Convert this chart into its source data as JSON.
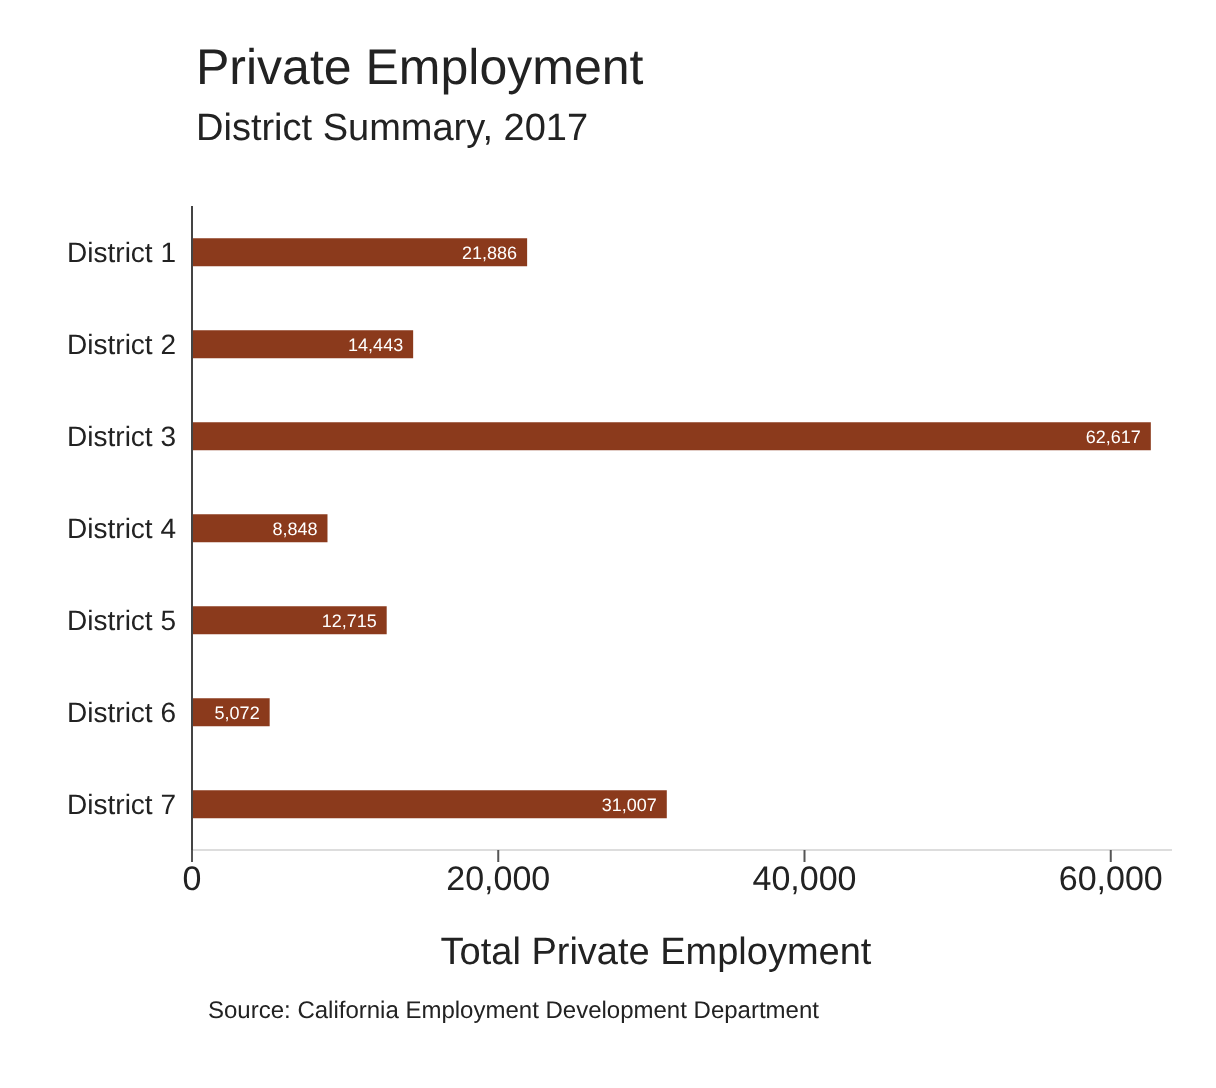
{
  "chart_data": {
    "type": "bar",
    "orientation": "horizontal",
    "title": "Private Employment",
    "subtitle": "District Summary, 2017",
    "xlabel": "Total Private Employment",
    "categories": [
      "District 1",
      "District 2",
      "District 3",
      "District 4",
      "District 5",
      "District 6",
      "District 7"
    ],
    "values": [
      21886,
      14443,
      62617,
      8848,
      12715,
      5072,
      31007
    ],
    "value_labels": [
      "21,886",
      "14,443",
      "62,617",
      "8,848",
      "12,715",
      "5,072",
      "31,007"
    ],
    "color": "#8b3a1c",
    "xlim": [
      0,
      64000
    ],
    "xticks": [
      {
        "value": 0,
        "label": "0"
      },
      {
        "value": 20000,
        "label": "20,000"
      },
      {
        "value": 40000,
        "label": "40,000"
      },
      {
        "value": 60000,
        "label": "60,000"
      }
    ],
    "grid": false,
    "legend": false,
    "annotations": [
      "Source: California Employment Development Department"
    ]
  }
}
